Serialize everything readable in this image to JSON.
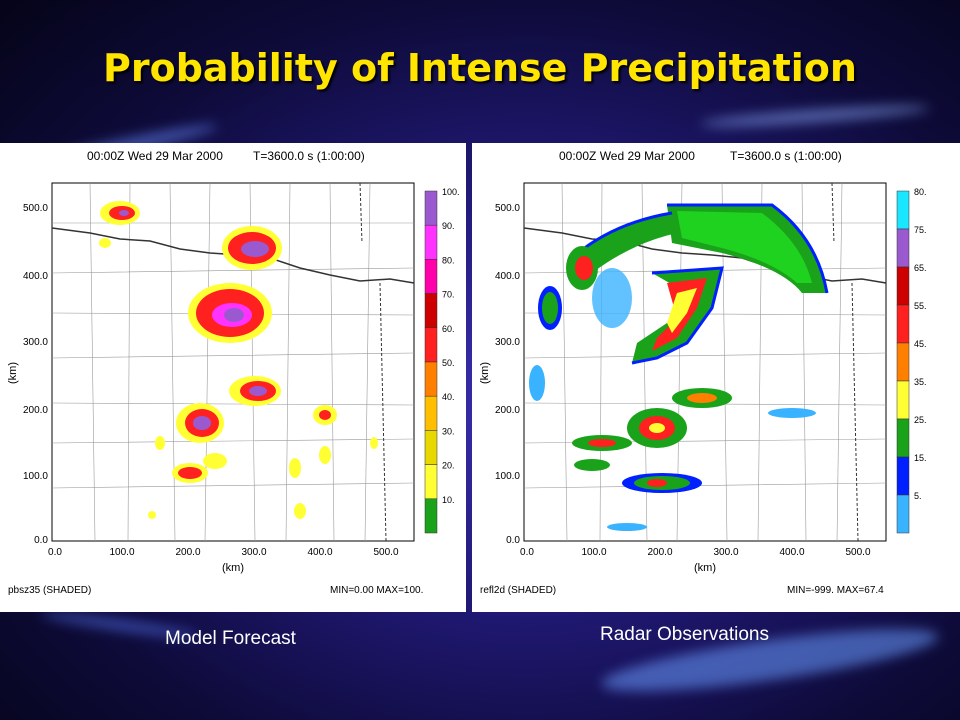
{
  "slide": {
    "title": "Probability of Intense Precipitation"
  },
  "panels": [
    {
      "id": "model",
      "header_time": "00:00Z Wed 29 Mar 2000",
      "header_t": "T=3600.0 s (1:00:00)",
      "ylabel": "(km)",
      "xlabel": "(km)",
      "x_ticks": [
        "0.0",
        "100.0",
        "200.0",
        "300.0",
        "400.0",
        "500.0"
      ],
      "y_ticks": [
        "0.0",
        "100.0",
        "200.0",
        "300.0",
        "400.0",
        "500.0"
      ],
      "footer_left": "pbsz35 (SHADED)",
      "footer_right": "MIN=0.00 MAX=100.",
      "colorbar_labels": [
        "100.",
        "90.",
        "80.",
        "70.",
        "60.",
        "50.",
        "40.",
        "30.",
        "20.",
        "10."
      ],
      "colorbar_colors": [
        "#9b59d0",
        "#ff33ff",
        "#ff00aa",
        "#cc0000",
        "#ff2020",
        "#ff7f00",
        "#ffbf00",
        "#e6d800",
        "#ffff33",
        "#1aa31a"
      ],
      "caption": "Model Forecast"
    },
    {
      "id": "radar",
      "header_time": "00:00Z Wed 29 Mar 2000",
      "header_t": "T=3600.0 s (1:00:00)",
      "ylabel": "(km)",
      "xlabel": "(km)",
      "x_ticks": [
        "0.0",
        "100.0",
        "200.0",
        "300.0",
        "400.0",
        "500.0"
      ],
      "y_ticks": [
        "0.0",
        "100.0",
        "200.0",
        "300.0",
        "400.0",
        "500.0"
      ],
      "footer_left": "refl2d (SHADED)",
      "footer_right": "MIN=-999. MAX=67.4",
      "colorbar_labels": [
        "80.",
        "75.",
        "65.",
        "55.",
        "45.",
        "35.",
        "25.",
        "15.",
        "5."
      ],
      "colorbar_colors": [
        "#19e6ff",
        "#9b59d0",
        "#cc0000",
        "#ff2020",
        "#ff7f00",
        "#ffff33",
        "#1aa31a",
        "#0020ff",
        "#39b3ff"
      ],
      "caption": "Radar Observations"
    }
  ]
}
